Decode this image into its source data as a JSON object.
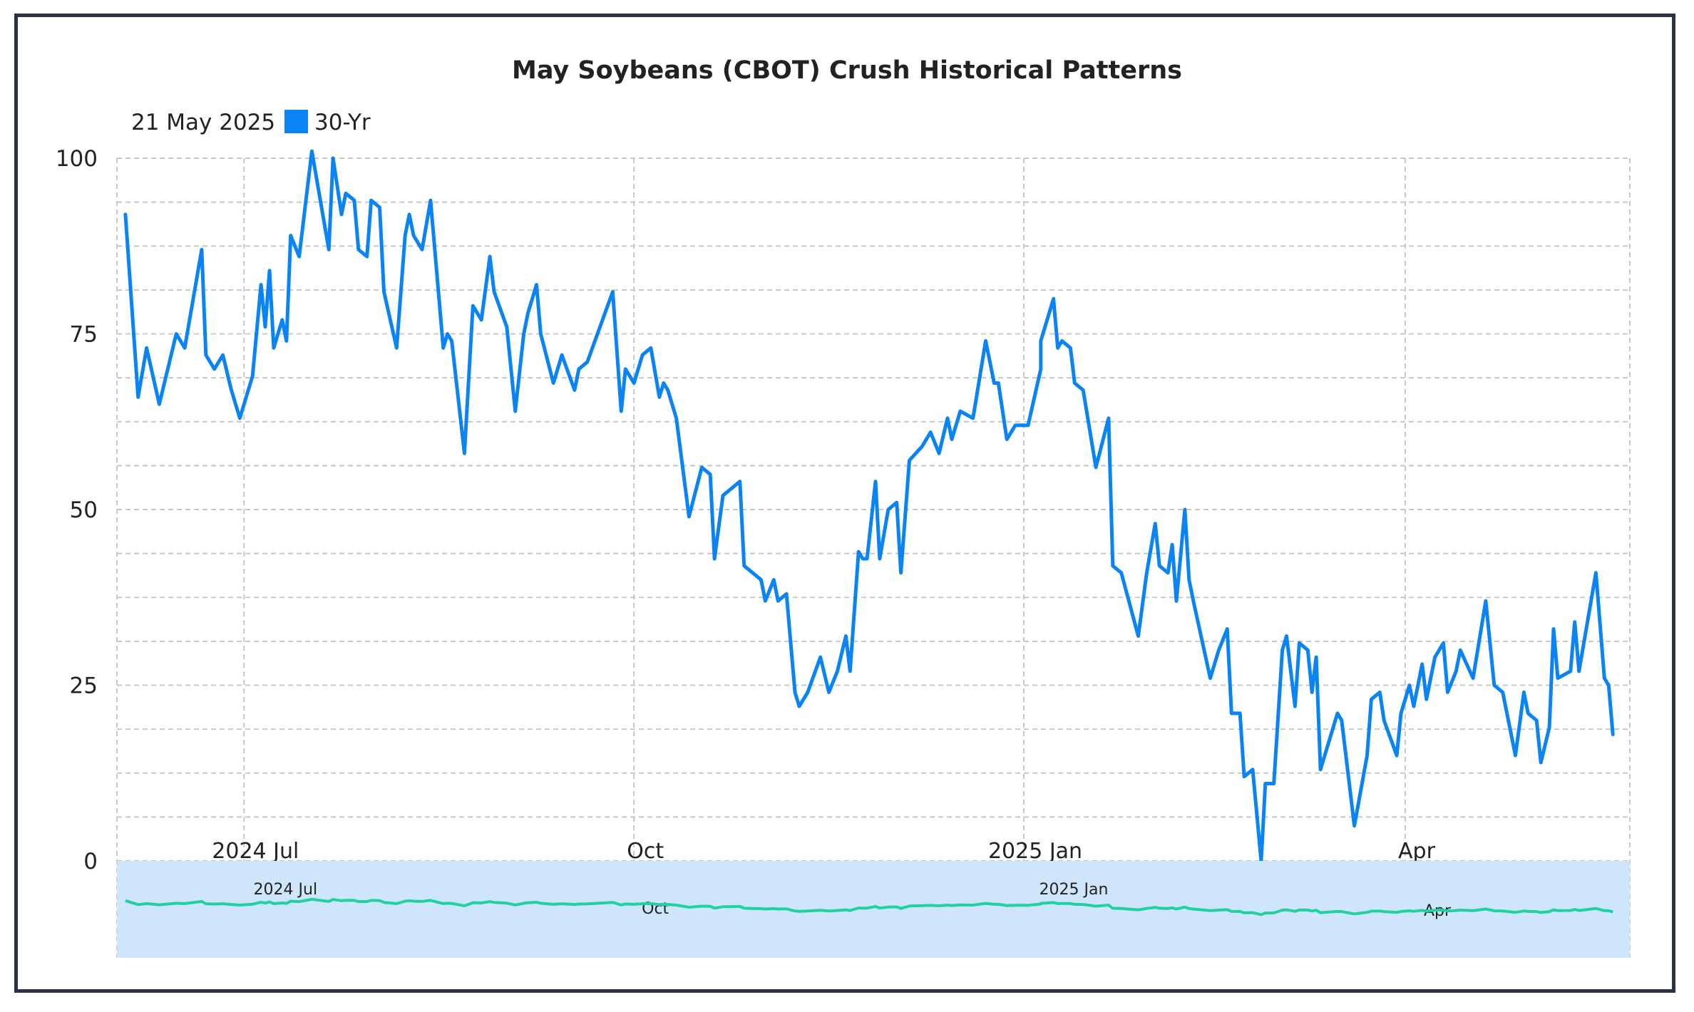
{
  "chart_data": {
    "type": "line",
    "title": "May Soybeans (CBOT) Crush Historical Patterns",
    "date_label": "21 May 2025",
    "legend_position": "top-left",
    "grid": true,
    "ylim": [
      0,
      100
    ],
    "yticks": [
      "0",
      "25",
      "50",
      "75",
      "100"
    ],
    "xticks": [
      {
        "date": "2024-07-01",
        "label": "2024 Jul"
      },
      {
        "date": "2024-10-01",
        "label": "Oct"
      },
      {
        "date": "2025-01-01",
        "label": "2025 Jan"
      },
      {
        "date": "2025-04-01",
        "label": "Apr"
      }
    ],
    "navigator_xticks": [
      {
        "date": "2024-07-01",
        "label": "2024 Jul"
      },
      {
        "date": "2024-10-01",
        "label": "Oct"
      },
      {
        "date": "2025-01-01",
        "label": "2025 Jan"
      },
      {
        "date": "2025-04-01",
        "label": "Apr"
      }
    ],
    "xlim": [
      "2024-06-01",
      "2025-05-24"
    ],
    "series": [
      {
        "name": "30-Yr",
        "color": "#0a84f5",
        "points": [
          [
            "2024-06-03",
            92
          ],
          [
            "2024-06-06",
            66
          ],
          [
            "2024-06-08",
            73
          ],
          [
            "2024-06-11",
            65
          ],
          [
            "2024-06-13",
            70
          ],
          [
            "2024-06-15",
            75
          ],
          [
            "2024-06-17",
            73
          ],
          [
            "2024-06-21",
            87
          ],
          [
            "2024-06-22",
            72
          ],
          [
            "2024-06-24",
            70
          ],
          [
            "2024-06-26",
            72
          ],
          [
            "2024-06-28",
            67
          ],
          [
            "2024-06-30",
            63
          ],
          [
            "2024-07-03",
            69
          ],
          [
            "2024-07-05",
            82
          ],
          [
            "2024-07-06",
            76
          ],
          [
            "2024-07-07",
            84
          ],
          [
            "2024-07-08",
            73
          ],
          [
            "2024-07-10",
            77
          ],
          [
            "2024-07-11",
            74
          ],
          [
            "2024-07-12",
            89
          ],
          [
            "2024-07-14",
            86
          ],
          [
            "2024-07-17",
            101
          ],
          [
            "2024-07-19",
            94
          ],
          [
            "2024-07-21",
            87
          ],
          [
            "2024-07-22",
            100
          ],
          [
            "2024-07-24",
            92
          ],
          [
            "2024-07-25",
            95
          ],
          [
            "2024-07-27",
            94
          ],
          [
            "2024-07-28",
            87
          ],
          [
            "2024-07-30",
            86
          ],
          [
            "2024-07-31",
            94
          ],
          [
            "2024-08-02",
            93
          ],
          [
            "2024-08-03",
            81
          ],
          [
            "2024-08-06",
            73
          ],
          [
            "2024-08-08",
            89
          ],
          [
            "2024-08-09",
            92
          ],
          [
            "2024-08-10",
            89
          ],
          [
            "2024-08-12",
            87
          ],
          [
            "2024-08-14",
            94
          ],
          [
            "2024-08-17",
            73
          ],
          [
            "2024-08-18",
            75
          ],
          [
            "2024-08-19",
            74
          ],
          [
            "2024-08-22",
            58
          ],
          [
            "2024-08-24",
            79
          ],
          [
            "2024-08-26",
            77
          ],
          [
            "2024-08-28",
            86
          ],
          [
            "2024-08-29",
            81
          ],
          [
            "2024-09-01",
            76
          ],
          [
            "2024-09-03",
            64
          ],
          [
            "2024-09-05",
            75
          ],
          [
            "2024-09-06",
            78
          ],
          [
            "2024-09-08",
            82
          ],
          [
            "2024-09-09",
            75
          ],
          [
            "2024-09-12",
            68
          ],
          [
            "2024-09-14",
            72
          ],
          [
            "2024-09-17",
            67
          ],
          [
            "2024-09-18",
            70
          ],
          [
            "2024-09-20",
            71
          ],
          [
            "2024-09-26",
            81
          ],
          [
            "2024-09-28",
            64
          ],
          [
            "2024-09-29",
            70
          ],
          [
            "2024-10-01",
            68
          ],
          [
            "2024-10-03",
            72
          ],
          [
            "2024-10-05",
            73
          ],
          [
            "2024-10-07",
            66
          ],
          [
            "2024-10-08",
            68
          ],
          [
            "2024-10-09",
            67
          ],
          [
            "2024-10-11",
            63
          ],
          [
            "2024-10-14",
            49
          ],
          [
            "2024-10-17",
            56
          ],
          [
            "2024-10-19",
            55
          ],
          [
            "2024-10-20",
            43
          ],
          [
            "2024-10-22",
            52
          ],
          [
            "2024-10-24",
            53
          ],
          [
            "2024-10-26",
            54
          ],
          [
            "2024-10-27",
            42
          ],
          [
            "2024-10-29",
            41
          ],
          [
            "2024-10-31",
            40
          ],
          [
            "2024-11-01",
            37
          ],
          [
            "2024-11-03",
            40
          ],
          [
            "2024-11-04",
            37
          ],
          [
            "2024-11-06",
            38
          ],
          [
            "2024-11-08",
            24
          ],
          [
            "2024-11-09",
            22
          ],
          [
            "2024-11-11",
            24
          ],
          [
            "2024-11-14",
            29
          ],
          [
            "2024-11-16",
            24
          ],
          [
            "2024-11-18",
            27
          ],
          [
            "2024-11-20",
            32
          ],
          [
            "2024-11-21",
            27
          ],
          [
            "2024-11-23",
            44
          ],
          [
            "2024-11-24",
            43
          ],
          [
            "2024-11-25",
            43
          ],
          [
            "2024-11-27",
            54
          ],
          [
            "2024-11-28",
            43
          ],
          [
            "2024-11-30",
            50
          ],
          [
            "2024-12-02",
            51
          ],
          [
            "2024-12-03",
            41
          ],
          [
            "2024-12-05",
            57
          ],
          [
            "2024-12-08",
            59
          ],
          [
            "2024-12-10",
            61
          ],
          [
            "2024-12-12",
            58
          ],
          [
            "2024-12-14",
            63
          ],
          [
            "2024-12-15",
            60
          ],
          [
            "2024-12-17",
            64
          ],
          [
            "2024-12-20",
            63
          ],
          [
            "2024-12-23",
            74
          ],
          [
            "2024-12-25",
            68
          ],
          [
            "2024-12-26",
            68
          ],
          [
            "2024-12-28",
            60
          ],
          [
            "2024-12-30",
            62
          ],
          [
            "2025-01-02",
            62
          ],
          [
            "2025-01-05",
            70
          ],
          [
            "2025-01-05",
            74
          ],
          [
            "2025-01-08",
            80
          ],
          [
            "2025-01-09",
            73
          ],
          [
            "2025-01-10",
            74
          ],
          [
            "2025-01-12",
            73
          ],
          [
            "2025-01-13",
            68
          ],
          [
            "2025-01-15",
            67
          ],
          [
            "2025-01-18",
            56
          ],
          [
            "2025-01-21",
            63
          ],
          [
            "2025-01-22",
            42
          ],
          [
            "2025-01-24",
            41
          ],
          [
            "2025-01-28",
            32
          ],
          [
            "2025-01-30",
            41
          ],
          [
            "2025-02-01",
            48
          ],
          [
            "2025-02-02",
            42
          ],
          [
            "2025-02-04",
            41
          ],
          [
            "2025-02-05",
            45
          ],
          [
            "2025-02-06",
            37
          ],
          [
            "2025-02-08",
            50
          ],
          [
            "2025-02-09",
            40
          ],
          [
            "2025-02-10",
            37
          ],
          [
            "2025-02-14",
            26
          ],
          [
            "2025-02-16",
            30
          ],
          [
            "2025-02-18",
            33
          ],
          [
            "2025-02-19",
            21
          ],
          [
            "2025-02-21",
            21
          ],
          [
            "2025-02-22",
            12
          ],
          [
            "2025-02-24",
            13
          ],
          [
            "2025-02-26",
            0
          ],
          [
            "2025-02-27",
            11
          ],
          [
            "2025-03-01",
            11
          ],
          [
            "2025-03-03",
            30
          ],
          [
            "2025-03-04",
            32
          ],
          [
            "2025-03-06",
            22
          ],
          [
            "2025-03-07",
            31
          ],
          [
            "2025-03-09",
            30
          ],
          [
            "2025-03-10",
            24
          ],
          [
            "2025-03-11",
            29
          ],
          [
            "2025-03-12",
            13
          ],
          [
            "2025-03-16",
            21
          ],
          [
            "2025-03-17",
            20
          ],
          [
            "2025-03-20",
            5
          ],
          [
            "2025-03-23",
            15
          ],
          [
            "2025-03-24",
            23
          ],
          [
            "2025-03-26",
            24
          ],
          [
            "2025-03-27",
            20
          ],
          [
            "2025-03-30",
            15
          ],
          [
            "2025-03-31",
            21
          ],
          [
            "2025-04-02",
            25
          ],
          [
            "2025-04-03",
            22
          ],
          [
            "2025-04-04",
            25
          ],
          [
            "2025-04-05",
            28
          ],
          [
            "2025-04-06",
            23
          ],
          [
            "2025-04-08",
            29
          ],
          [
            "2025-04-10",
            31
          ],
          [
            "2025-04-11",
            24
          ],
          [
            "2025-04-13",
            27
          ],
          [
            "2025-04-14",
            30
          ],
          [
            "2025-04-17",
            26
          ],
          [
            "2025-04-20",
            37
          ],
          [
            "2025-04-22",
            25
          ],
          [
            "2025-04-24",
            24
          ],
          [
            "2025-04-27",
            15
          ],
          [
            "2025-04-29",
            24
          ],
          [
            "2025-04-30",
            21
          ],
          [
            "2025-05-02",
            20
          ],
          [
            "2025-05-03",
            14
          ],
          [
            "2025-05-05",
            19
          ],
          [
            "2025-05-06",
            33
          ],
          [
            "2025-05-07",
            26
          ],
          [
            "2025-05-10",
            27
          ],
          [
            "2025-05-11",
            34
          ],
          [
            "2025-05-12",
            27
          ],
          [
            "2025-05-16",
            41
          ],
          [
            "2025-05-18",
            26
          ],
          [
            "2025-05-19",
            25
          ],
          [
            "2025-05-20",
            18
          ]
        ]
      }
    ],
    "navigator_series": {
      "color": "#20d2a0",
      "fill": "#cfe5fb"
    }
  }
}
